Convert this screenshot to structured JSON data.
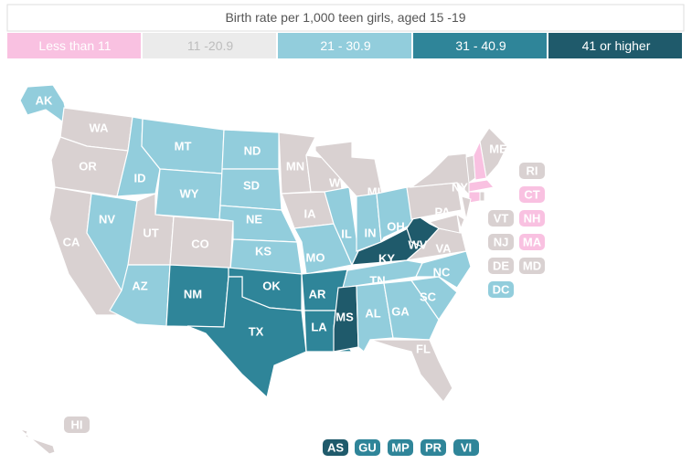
{
  "title": "Birth rate per 1,000 teen girls, aged 15 -19",
  "legend": [
    {
      "label": "Less than 11",
      "color": "#f9c1e1",
      "text_color": "#ffffff"
    },
    {
      "label": "11 -20.9",
      "color": "#ebebeb",
      "text_color": "#bdbdbd"
    },
    {
      "label": "21 - 30.9",
      "color": "#92cddc",
      "text_color": "#ffffff"
    },
    {
      "label": "31 - 40.9",
      "color": "#2f8599",
      "text_color": "#ffffff"
    },
    {
      "label": "41 or higher",
      "color": "#1f5a6b",
      "text_color": "#ffffff"
    }
  ],
  "map_colors": [
    "#f9c1e1",
    "#d9d1d1",
    "#92cddc",
    "#2f8599",
    "#1f5a6b"
  ],
  "states": [
    {
      "abbr": "AK",
      "bucket": 2
    },
    {
      "abbr": "WA",
      "bucket": 1
    },
    {
      "abbr": "OR",
      "bucket": 1
    },
    {
      "abbr": "CA",
      "bucket": 1
    },
    {
      "abbr": "NV",
      "bucket": 2
    },
    {
      "abbr": "ID",
      "bucket": 2
    },
    {
      "abbr": "MT",
      "bucket": 2
    },
    {
      "abbr": "WY",
      "bucket": 2
    },
    {
      "abbr": "UT",
      "bucket": 1
    },
    {
      "abbr": "CO",
      "bucket": 1
    },
    {
      "abbr": "AZ",
      "bucket": 2
    },
    {
      "abbr": "NM",
      "bucket": 3
    },
    {
      "abbr": "ND",
      "bucket": 2
    },
    {
      "abbr": "SD",
      "bucket": 2
    },
    {
      "abbr": "NE",
      "bucket": 2
    },
    {
      "abbr": "KS",
      "bucket": 2
    },
    {
      "abbr": "OK",
      "bucket": 3
    },
    {
      "abbr": "TX",
      "bucket": 3
    },
    {
      "abbr": "MN",
      "bucket": 1
    },
    {
      "abbr": "IA",
      "bucket": 1
    },
    {
      "abbr": "MO",
      "bucket": 2
    },
    {
      "abbr": "AR",
      "bucket": 3
    },
    {
      "abbr": "LA",
      "bucket": 3
    },
    {
      "abbr": "WI",
      "bucket": 1
    },
    {
      "abbr": "IL",
      "bucket": 2
    },
    {
      "abbr": "MI",
      "bucket": 1
    },
    {
      "abbr": "IN",
      "bucket": 2
    },
    {
      "abbr": "OH",
      "bucket": 2
    },
    {
      "abbr": "KY",
      "bucket": 4
    },
    {
      "abbr": "TN",
      "bucket": 2
    },
    {
      "abbr": "MS",
      "bucket": 4
    },
    {
      "abbr": "AL",
      "bucket": 2
    },
    {
      "abbr": "GA",
      "bucket": 2
    },
    {
      "abbr": "FL",
      "bucket": 1
    },
    {
      "abbr": "SC",
      "bucket": 2
    },
    {
      "abbr": "NC",
      "bucket": 2
    },
    {
      "abbr": "VA",
      "bucket": 1
    },
    {
      "abbr": "WV",
      "bucket": 4
    },
    {
      "abbr": "PA",
      "bucket": 1
    },
    {
      "abbr": "NY",
      "bucket": 1
    },
    {
      "abbr": "ME",
      "bucket": 1
    },
    {
      "abbr": "RI",
      "bucket": 1
    },
    {
      "abbr": "CT",
      "bucket": 0
    },
    {
      "abbr": "VT",
      "bucket": 1
    },
    {
      "abbr": "NH",
      "bucket": 0
    },
    {
      "abbr": "NJ",
      "bucket": 1
    },
    {
      "abbr": "MA",
      "bucket": 0
    },
    {
      "abbr": "DE",
      "bucket": 1
    },
    {
      "abbr": "MD",
      "bucket": 1
    },
    {
      "abbr": "DC",
      "bucket": 2
    },
    {
      "abbr": "HI",
      "bucket": 1
    },
    {
      "abbr": "AS",
      "bucket": 4
    },
    {
      "abbr": "GU",
      "bucket": 3
    },
    {
      "abbr": "MP",
      "bucket": 3
    },
    {
      "abbr": "PR",
      "bucket": 3
    },
    {
      "abbr": "VI",
      "bucket": 3
    }
  ]
}
